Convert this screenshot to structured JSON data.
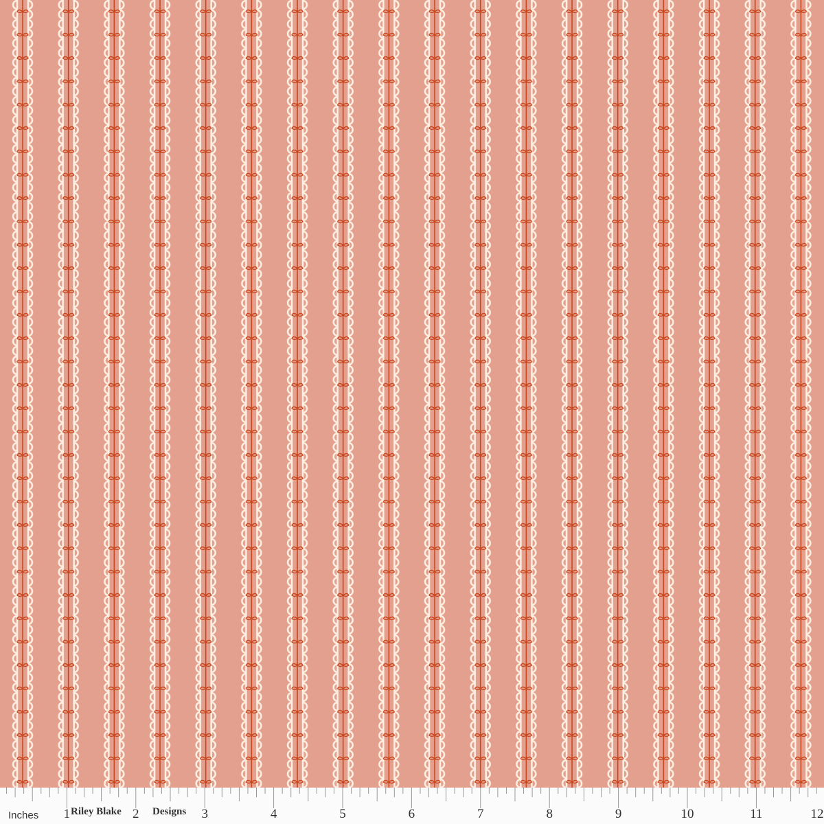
{
  "fabric": {
    "background_color": "#e4a08e",
    "scallop_color": "#fcefe2",
    "vine_color": "#c8461e",
    "stripe_count": 18
  },
  "ruler": {
    "unit_label": "Inches",
    "brand_part1": "Riley Blake",
    "brand_part2": "Designs",
    "numbers": [
      "1",
      "2",
      "3",
      "4",
      "5",
      "6",
      "7",
      "8",
      "9",
      "10",
      "11",
      "12"
    ]
  }
}
